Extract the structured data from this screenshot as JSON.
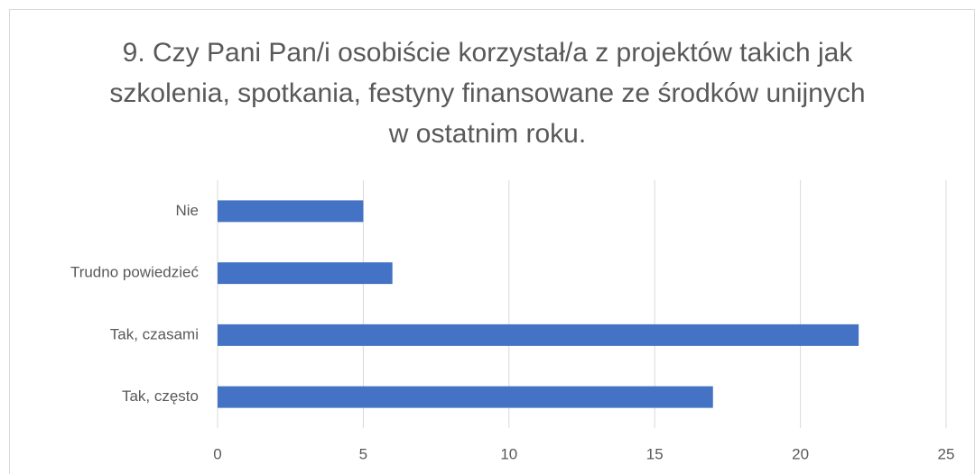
{
  "chart_data": {
    "type": "barh",
    "title": "9. Czy Pani Pan/i osobiście korzystał/a z projektów takich jak szkolenia, spotkania, festyny finansowane ze środków unijnych w ostatnim roku.",
    "categories": [
      "Nie",
      "Trudno powiedzieć",
      "Tak, czasami",
      "Tak, często"
    ],
    "values": [
      5,
      6,
      22,
      17
    ],
    "color": "#4472c4",
    "xlim": [
      0,
      25
    ],
    "xticks": [
      0,
      5,
      10,
      15,
      20,
      25
    ],
    "grid": true
  }
}
